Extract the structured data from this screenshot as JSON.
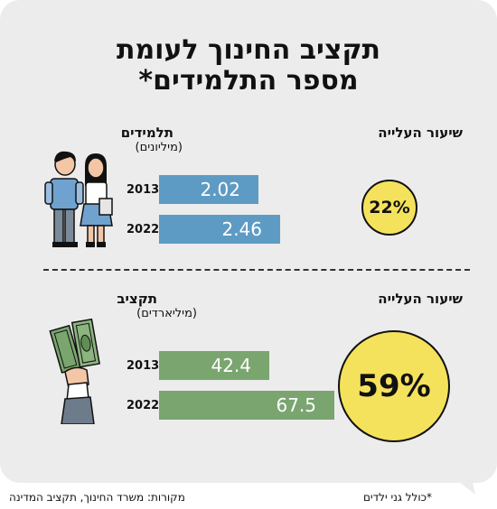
{
  "title": {
    "line1": "תקציב החינוך לעומת",
    "line2": "מספר התלמידים*"
  },
  "students": {
    "label": "תלמידים",
    "unit": "(מיליונים)",
    "rate_label": "שיעור העלייה",
    "rate": "22%",
    "bar_color": "#5e9bc4",
    "rows": [
      {
        "year": "2013",
        "value": 2.02,
        "value_label": "2.02"
      },
      {
        "year": "2022",
        "value": 2.46,
        "value_label": "2.46"
      }
    ]
  },
  "budget": {
    "label": "תקציב",
    "unit": "(מיליארדים)",
    "rate_label": "שיעור העלייה",
    "rate": "59%",
    "bar_color": "#7aa56f",
    "rows": [
      {
        "year": "2013",
        "value": 42.4,
        "value_label": "42.4"
      },
      {
        "year": "2022",
        "value": 67.5,
        "value_label": "67.5"
      }
    ]
  },
  "footer": {
    "note": "*כולל גני ילדים",
    "sources": "מקורות: משרד החינוך, תקציב המדינה"
  },
  "icons": {
    "students": "students-icon",
    "money": "money-hand-icon"
  },
  "colors": {
    "circle_fill": "#f5e25c",
    "card_bg": "#ececec"
  },
  "chart_data": [
    {
      "type": "bar",
      "orientation": "horizontal",
      "title": "תלמידים",
      "subtitle": "(מיליונים)",
      "categories": [
        "2013",
        "2022"
      ],
      "values": [
        2.02,
        2.46
      ],
      "annotation": "שיעור העלייה 22%"
    },
    {
      "type": "bar",
      "orientation": "horizontal",
      "title": "תקציב",
      "subtitle": "(מיליארדים)",
      "categories": [
        "2013",
        "2022"
      ],
      "values": [
        42.4,
        67.5
      ],
      "annotation": "שיעור העלייה 59%"
    }
  ]
}
